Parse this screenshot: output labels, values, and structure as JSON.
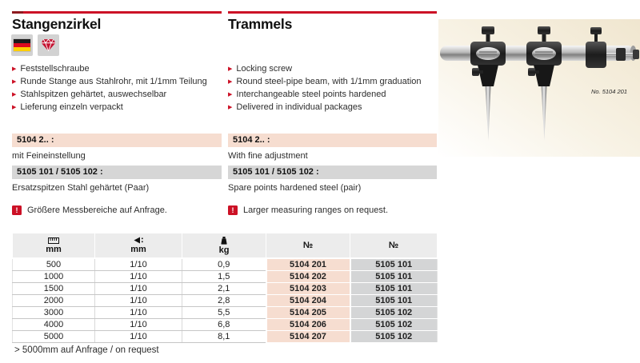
{
  "header": {
    "left_title": "Stangenzirkel",
    "right_title": "Trammels"
  },
  "left": {
    "bullets": [
      "Feststellschraube",
      "Runde Stange aus Stahlrohr, mit 1/1mm Teilung",
      "Stahlspitzen gehärtet, auswechselbar",
      "Lieferung einzeln verpackt"
    ],
    "block1_code": "5104 2.. :",
    "block1_text": "mit Feineinstellung",
    "block2_code": "5105 101 / 5105 102 :",
    "block2_text": "Ersatzspitzen Stahl gehärtet (Paar)",
    "note": "Größere Messbereiche auf Anfrage."
  },
  "right": {
    "bullets": [
      "Locking screw",
      "Round steel-pipe beam, with 1/1mm graduation",
      "Interchangeable steel points hardened",
      "Delivered in individual packages"
    ],
    "block1_code": "5104 2.. :",
    "block1_text": "With fine adjustment",
    "block2_code": "5105 101 / 5105 102 :",
    "block2_text": "Spare points hardened steel (pair)",
    "note": "Larger measuring ranges on request."
  },
  "product_image": {
    "caption": "No. 5104 201"
  },
  "icons": {
    "flag": "german-flag-icon",
    "gem": "diamond-icon",
    "col1": "ruler-icon",
    "col2": "graduation-icon",
    "col3": "weight-icon",
    "note": "warning-icon"
  },
  "table": {
    "columns": [
      {
        "icon": "ruler-icon",
        "label": "mm"
      },
      {
        "icon": "graduation-icon",
        "label": "mm"
      },
      {
        "icon": "weight-icon",
        "label": "kg"
      },
      {
        "icon": "",
        "label": "№"
      },
      {
        "icon": "",
        "label": "№"
      }
    ],
    "rows": [
      {
        "range_mm": "500",
        "graduation": "1/10",
        "weight_kg": "0,9",
        "no_5104": "5104 201",
        "no_5105": "5105 101"
      },
      {
        "range_mm": "1000",
        "graduation": "1/10",
        "weight_kg": "1,5",
        "no_5104": "5104 202",
        "no_5105": "5105 101"
      },
      {
        "range_mm": "1500",
        "graduation": "1/10",
        "weight_kg": "2,1",
        "no_5104": "5104 203",
        "no_5105": "5105 101"
      },
      {
        "range_mm": "2000",
        "graduation": "1/10",
        "weight_kg": "2,8",
        "no_5104": "5104 204",
        "no_5105": "5105 101"
      },
      {
        "range_mm": "3000",
        "graduation": "1/10",
        "weight_kg": "5,5",
        "no_5104": "5104 205",
        "no_5105": "5105 102"
      },
      {
        "range_mm": "4000",
        "graduation": "1/10",
        "weight_kg": "6,8",
        "no_5104": "5104 206",
        "no_5105": "5105 102"
      },
      {
        "range_mm": "5000",
        "graduation": "1/10",
        "weight_kg": "8,1",
        "no_5104": "5104 207",
        "no_5105": "5105 102"
      }
    ],
    "footnote": "> 5000mm auf Anfrage / on request"
  },
  "colors": {
    "accent_red": "#cc1126",
    "dark_red": "#8e1a1f",
    "peach": "#f6ddd0",
    "gray_bar": "#d6d6d6",
    "header_gray": "#ececec",
    "gray_cell": "#d4d5d6"
  }
}
